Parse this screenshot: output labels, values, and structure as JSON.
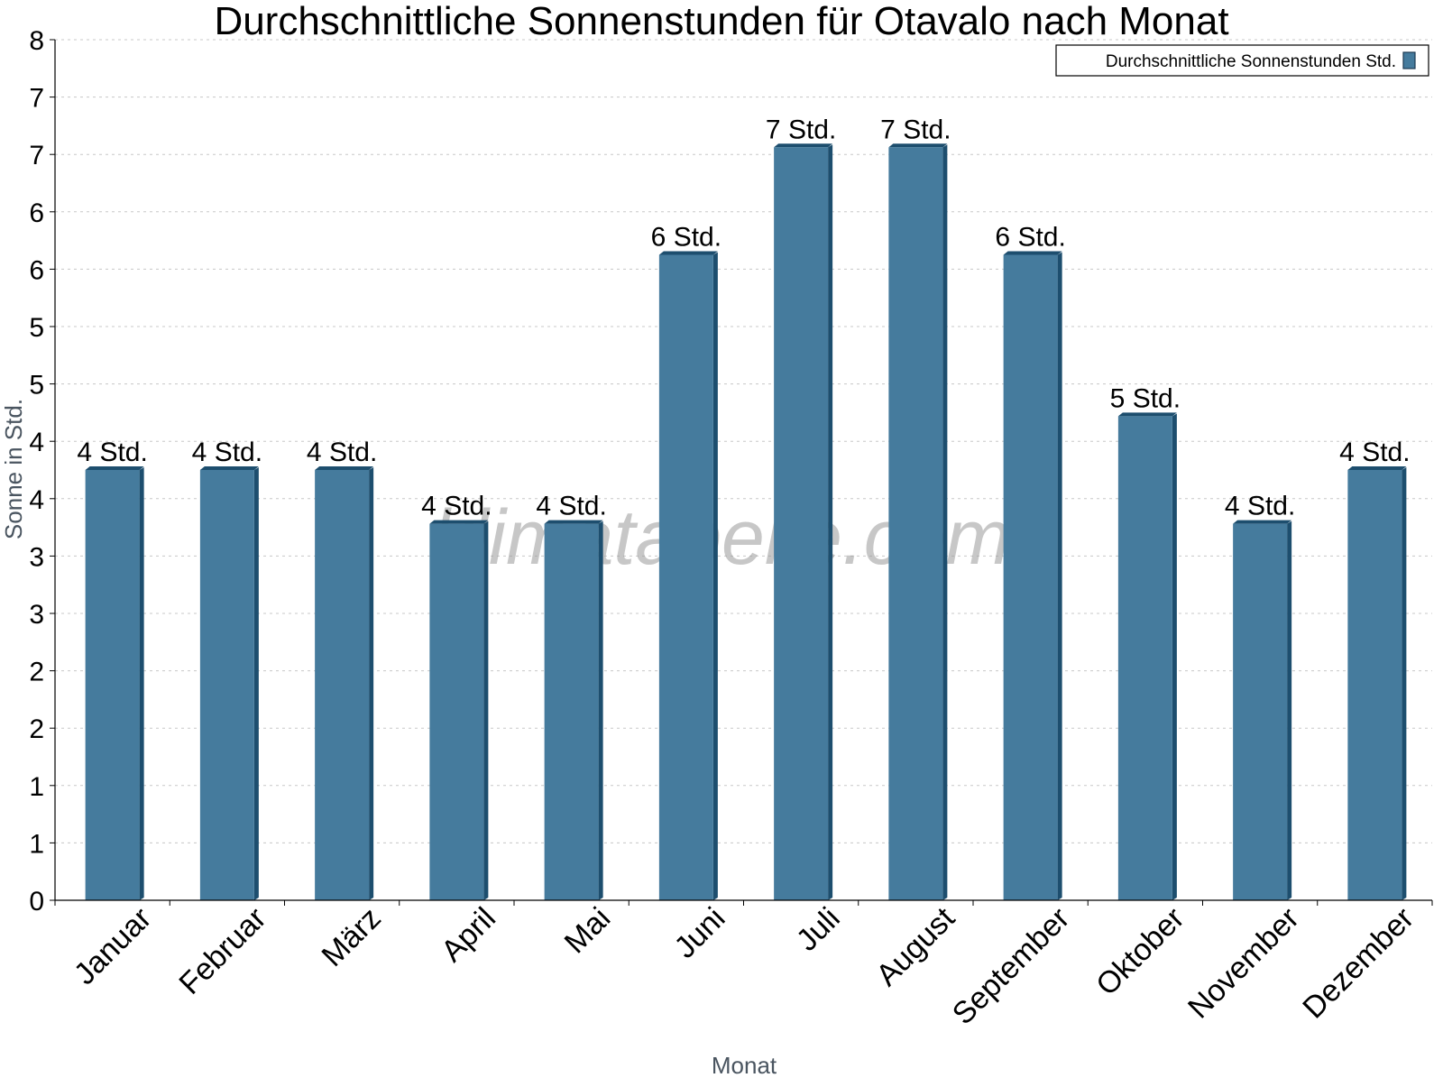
{
  "chart_data": {
    "type": "bar",
    "title": "Durchschnittliche Sonnenstunden für Otavalo nach Monat",
    "xlabel": "Monat",
    "ylabel": "Sonne in Std.",
    "ylim": [
      0,
      8
    ],
    "y_tick_labels": [
      "0",
      "1",
      "1",
      "2",
      "2",
      "3",
      "3",
      "4",
      "4",
      "5",
      "5",
      "6",
      "6",
      "7",
      "7",
      "8"
    ],
    "grid": true,
    "legend_position": "top-right",
    "categories": [
      "Januar",
      "Februar",
      "März",
      "April",
      "Mai",
      "Juni",
      "Juli",
      "August",
      "September",
      "Oktober",
      "November",
      "Dezember"
    ],
    "series": [
      {
        "name": "Durchschnittliche Sonnenstunden Std.",
        "values": [
          4.0,
          4.0,
          4.0,
          3.5,
          3.5,
          6.0,
          7.0,
          7.0,
          6.0,
          4.5,
          3.5,
          4.0
        ],
        "data_labels": [
          "4 Std.",
          "4 Std.",
          "4 Std.",
          "4 Std.",
          "4 Std.",
          "6 Std.",
          "7 Std.",
          "7 Std.",
          "6 Std.",
          "5 Std.",
          "4 Std.",
          "4 Std."
        ],
        "color": "#457b9d",
        "side_color": "#1d4e6e"
      }
    ],
    "watermark": "klimatabelle.com"
  }
}
